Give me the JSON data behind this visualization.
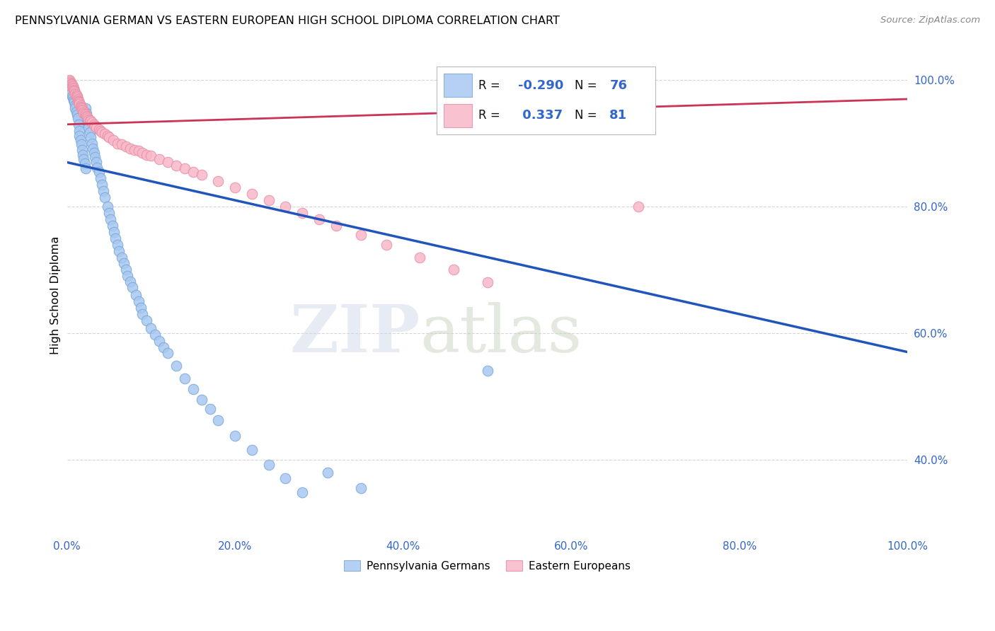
{
  "title": "PENNSYLVANIA GERMAN VS EASTERN EUROPEAN HIGH SCHOOL DIPLOMA CORRELATION CHART",
  "source": "Source: ZipAtlas.com",
  "ylabel": "High School Diploma",
  "background_color": "#ffffff",
  "blue_color": "#a8c8f0",
  "blue_edge_color": "#7aa8d8",
  "pink_color": "#f8b8c8",
  "pink_edge_color": "#e890a8",
  "blue_line_color": "#2255bb",
  "pink_line_color": "#cc3355",
  "legend_blue_r": "-0.290",
  "legend_blue_n": "76",
  "legend_pink_r": "0.337",
  "legend_pink_n": "81",
  "blue_scatter_x": [
    0.005,
    0.006,
    0.007,
    0.008,
    0.009,
    0.01,
    0.01,
    0.011,
    0.012,
    0.013,
    0.014,
    0.015,
    0.015,
    0.016,
    0.017,
    0.018,
    0.019,
    0.02,
    0.021,
    0.022,
    0.022,
    0.023,
    0.024,
    0.025,
    0.026,
    0.027,
    0.028,
    0.03,
    0.031,
    0.032,
    0.033,
    0.035,
    0.036,
    0.038,
    0.04,
    0.042,
    0.043,
    0.045,
    0.048,
    0.05,
    0.052,
    0.054,
    0.056,
    0.058,
    0.06,
    0.062,
    0.065,
    0.068,
    0.07,
    0.072,
    0.075,
    0.078,
    0.082,
    0.085,
    0.088,
    0.09,
    0.095,
    0.1,
    0.105,
    0.11,
    0.115,
    0.12,
    0.13,
    0.14,
    0.15,
    0.16,
    0.17,
    0.18,
    0.2,
    0.22,
    0.24,
    0.26,
    0.28,
    0.31,
    0.35,
    0.5
  ],
  "blue_scatter_y": [
    0.98,
    0.975,
    0.972,
    0.968,
    0.965,
    0.96,
    0.955,
    0.95,
    0.945,
    0.94,
    0.93,
    0.92,
    0.912,
    0.905,
    0.898,
    0.89,
    0.882,
    0.875,
    0.868,
    0.86,
    0.955,
    0.948,
    0.94,
    0.932,
    0.925,
    0.918,
    0.91,
    0.9,
    0.892,
    0.885,
    0.878,
    0.87,
    0.862,
    0.855,
    0.845,
    0.835,
    0.825,
    0.815,
    0.8,
    0.79,
    0.78,
    0.77,
    0.76,
    0.75,
    0.74,
    0.73,
    0.72,
    0.71,
    0.7,
    0.69,
    0.682,
    0.672,
    0.66,
    0.65,
    0.64,
    0.63,
    0.62,
    0.608,
    0.598,
    0.588,
    0.578,
    0.568,
    0.548,
    0.528,
    0.512,
    0.495,
    0.48,
    0.462,
    0.438,
    0.415,
    0.392,
    0.37,
    0.348,
    0.38,
    0.355,
    0.54
  ],
  "pink_scatter_x": [
    0.003,
    0.004,
    0.004,
    0.005,
    0.005,
    0.006,
    0.006,
    0.007,
    0.007,
    0.008,
    0.008,
    0.009,
    0.009,
    0.01,
    0.01,
    0.011,
    0.011,
    0.012,
    0.012,
    0.013,
    0.013,
    0.014,
    0.014,
    0.015,
    0.015,
    0.016,
    0.016,
    0.017,
    0.018,
    0.018,
    0.019,
    0.02,
    0.02,
    0.021,
    0.022,
    0.023,
    0.024,
    0.025,
    0.026,
    0.027,
    0.028,
    0.03,
    0.032,
    0.033,
    0.035,
    0.038,
    0.04,
    0.042,
    0.045,
    0.048,
    0.05,
    0.055,
    0.06,
    0.065,
    0.07,
    0.075,
    0.08,
    0.085,
    0.09,
    0.095,
    0.1,
    0.11,
    0.12,
    0.13,
    0.14,
    0.15,
    0.16,
    0.18,
    0.2,
    0.22,
    0.24,
    0.26,
    0.28,
    0.3,
    0.32,
    0.35,
    0.38,
    0.42,
    0.46,
    0.5,
    0.68
  ],
  "pink_scatter_y": [
    1.0,
    0.998,
    0.996,
    0.995,
    0.993,
    0.992,
    0.99,
    0.99,
    0.988,
    0.987,
    0.985,
    0.984,
    0.982,
    0.98,
    0.978,
    0.977,
    0.975,
    0.974,
    0.972,
    0.97,
    0.968,
    0.967,
    0.965,
    0.964,
    0.962,
    0.96,
    0.958,
    0.957,
    0.955,
    0.953,
    0.952,
    0.95,
    0.948,
    0.947,
    0.945,
    0.943,
    0.942,
    0.94,
    0.938,
    0.937,
    0.935,
    0.933,
    0.93,
    0.928,
    0.925,
    0.922,
    0.92,
    0.918,
    0.915,
    0.912,
    0.91,
    0.905,
    0.9,
    0.898,
    0.895,
    0.892,
    0.89,
    0.888,
    0.885,
    0.882,
    0.88,
    0.875,
    0.87,
    0.865,
    0.86,
    0.855,
    0.85,
    0.84,
    0.83,
    0.82,
    0.81,
    0.8,
    0.79,
    0.78,
    0.77,
    0.755,
    0.74,
    0.72,
    0.7,
    0.68,
    0.8
  ],
  "xlim": [
    0.0,
    1.0
  ],
  "ylim": [
    0.28,
    1.04
  ],
  "xticks": [
    0.0,
    0.2,
    0.4,
    0.6,
    0.8,
    1.0
  ],
  "yticks": [
    0.4,
    0.6,
    0.8,
    1.0
  ],
  "ytick_labels_right": [
    "40.0%",
    "60.0%",
    "80.0%",
    "100.0%"
  ],
  "xtick_labels": [
    "0.0%",
    "20.0%",
    "40.0%",
    "60.0%",
    "80.0%",
    "100.0%"
  ],
  "grid_color": "#cccccc",
  "watermark_zip": "ZIP",
  "watermark_atlas": "atlas",
  "blue_line_x": [
    0.0,
    1.0
  ],
  "blue_line_y": [
    0.87,
    0.57
  ],
  "pink_line_x": [
    0.0,
    1.0
  ],
  "pink_line_y": [
    0.93,
    0.97
  ]
}
